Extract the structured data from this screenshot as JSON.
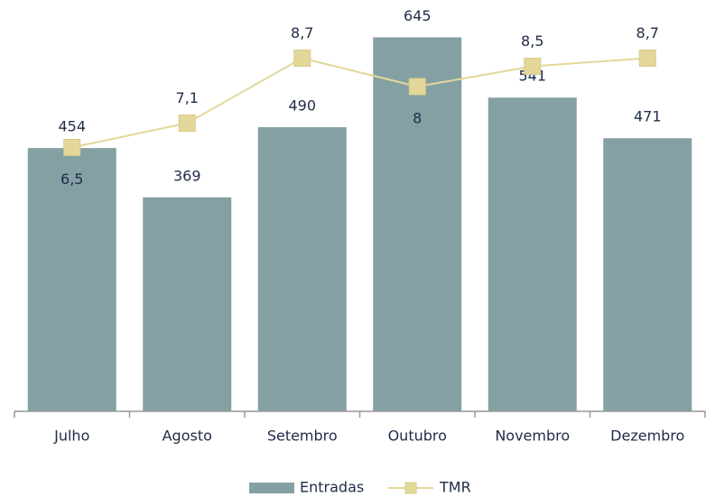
{
  "chart_data": {
    "type": "bar_line",
    "categories": [
      "Julho",
      "Agosto",
      "Setembro",
      "Outubro",
      "Novembro",
      "Dezembro"
    ],
    "ylim": [
      0,
      700
    ],
    "y2lim": [
      0,
      10
    ],
    "series": [
      {
        "name": "Entradas",
        "type": "bar",
        "color": "#84a0a3",
        "values": [
          454,
          369,
          490,
          645,
          541,
          471
        ]
      },
      {
        "name": "TMR",
        "type": "line",
        "axis": "y2",
        "color": "#e3d89a",
        "values": [
          6.5,
          7.1,
          8.7,
          8,
          8.5,
          8.7
        ],
        "value_labels": [
          "6,5",
          "7,1",
          "8,7",
          "8",
          "8,5",
          "8,7"
        ]
      }
    ]
  }
}
